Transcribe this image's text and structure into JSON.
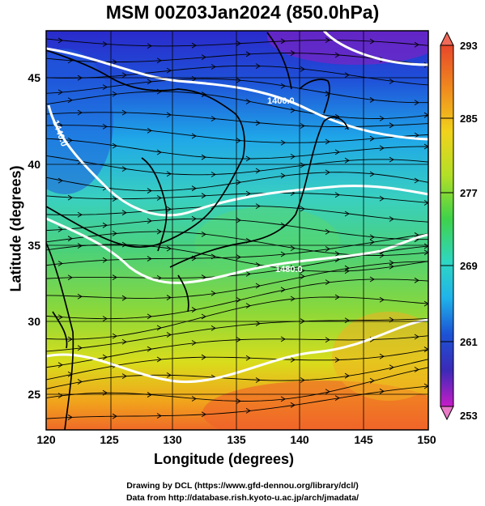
{
  "title": "MSM 00Z03Jan2024 (850.0hPa)",
  "map": {
    "xlabel": "Longitude (degrees)",
    "ylabel": "Latitude  (degrees)",
    "x_ticks": [
      "120",
      "125",
      "130",
      "135",
      "140",
      "145",
      "150"
    ],
    "y_ticks": [
      "25",
      "30",
      "35",
      "40",
      "45"
    ],
    "contour_labels": [
      "1400.0",
      "1440.0",
      "1480.0"
    ],
    "colorbar_ticks": [
      "293",
      "285",
      "277",
      "269",
      "261",
      "253"
    ]
  },
  "colors": {
    "background": "#ffffff",
    "coast": "#000000",
    "contour": "#ffffff"
  },
  "credits": {
    "line1": "Drawing by DCL (https://www.gfd-dennou.org/library/dcl/)",
    "line2": "Data from http://database.rish.kyoto-u.ac.jp/arch/jmadata/"
  }
}
